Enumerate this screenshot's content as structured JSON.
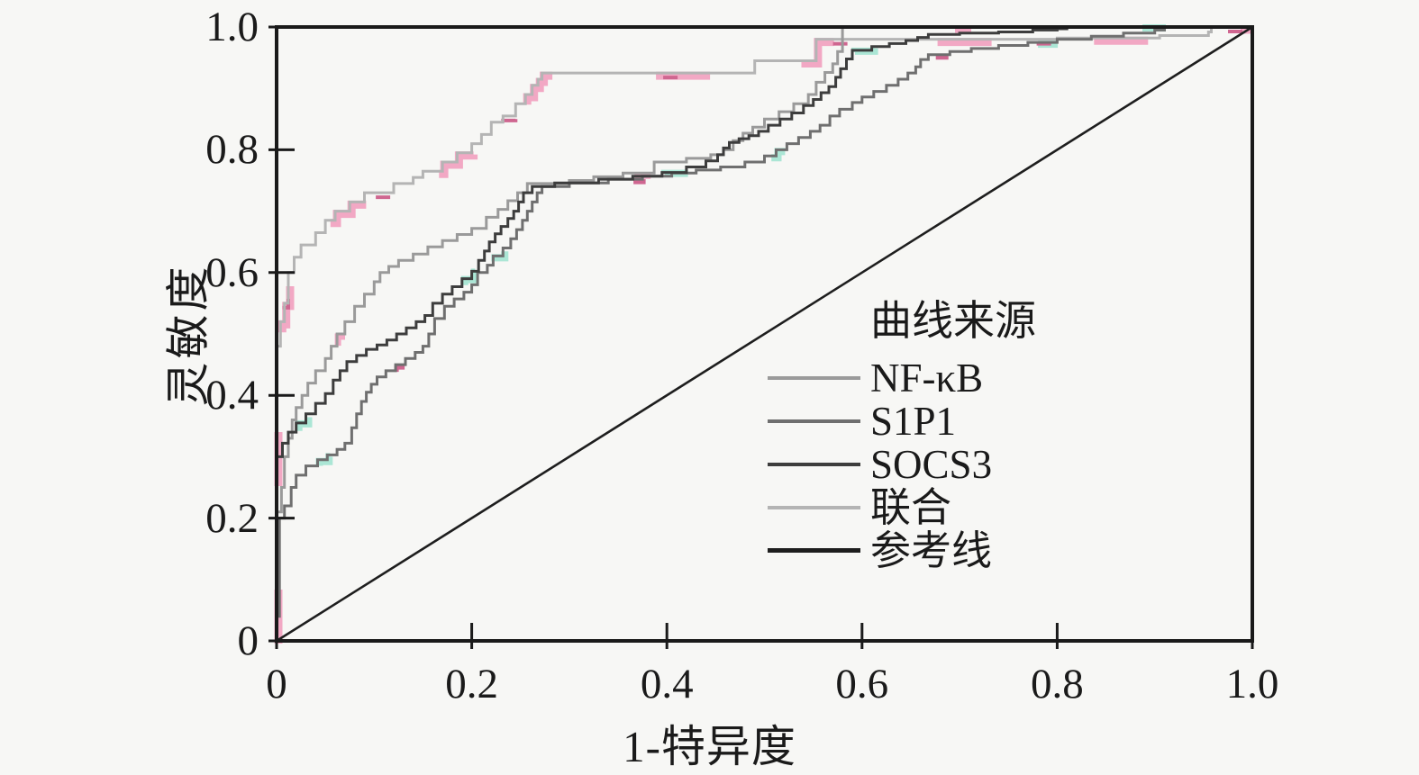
{
  "figure": {
    "background": "#f7f7f5",
    "text_color": "#1a1a1a",
    "frame_color": "#1a1a1a"
  },
  "chart_data": {
    "type": "line",
    "subtype": "roc-step-curves",
    "title": "",
    "xlabel": "1-特异度",
    "ylabel": "灵敏度",
    "xlim": [
      0,
      1
    ],
    "ylim": [
      0,
      1
    ],
    "grid": false,
    "x_tick_values": [
      0,
      0.2,
      0.4,
      0.6,
      0.8,
      1.0
    ],
    "y_tick_values": [
      0,
      0.2,
      0.4,
      0.6,
      0.8,
      1.0
    ],
    "x_tick_labels": [
      "0",
      "0.2",
      "0.4",
      "0.6",
      "0.8",
      "1.0"
    ],
    "y_tick_labels": [
      "0",
      "0.2",
      "0.4",
      "0.6",
      "0.8",
      "1.0"
    ],
    "legend": {
      "title": "曲线来源",
      "position": "inside-lower-right",
      "items": [
        {
          "label": "NF-κB",
          "color": "#9a9a9a"
        },
        {
          "label": "S1P1",
          "color": "#6f6f6f"
        },
        {
          "label": "SOCS3",
          "color": "#3d3d3d"
        },
        {
          "label": "联合",
          "color": "#b4b4b4"
        },
        {
          "label": "参考线",
          "color": "#1e1e1e"
        }
      ]
    },
    "accent_colors": {
      "pink": "#f2a8c4",
      "rose": "#cf6690",
      "teal": "#abe6d5"
    },
    "series": [
      {
        "name": "NF-κB",
        "color": "#9a9a9a",
        "step": true,
        "tint": "pink",
        "points": [
          [
            0,
            0
          ],
          [
            0,
            0.21
          ],
          [
            0.005,
            0.25
          ],
          [
            0.008,
            0.3
          ],
          [
            0.012,
            0.33
          ],
          [
            0.016,
            0.36
          ],
          [
            0.02,
            0.38
          ],
          [
            0.026,
            0.4
          ],
          [
            0.032,
            0.42
          ],
          [
            0.04,
            0.44
          ],
          [
            0.05,
            0.46
          ],
          [
            0.056,
            0.48
          ],
          [
            0.062,
            0.5
          ],
          [
            0.07,
            0.52
          ],
          [
            0.08,
            0.545
          ],
          [
            0.09,
            0.565
          ],
          [
            0.1,
            0.585
          ],
          [
            0.106,
            0.6
          ],
          [
            0.115,
            0.61
          ],
          [
            0.125,
            0.62
          ],
          [
            0.14,
            0.63
          ],
          [
            0.155,
            0.642
          ],
          [
            0.17,
            0.652
          ],
          [
            0.185,
            0.662
          ],
          [
            0.2,
            0.672
          ],
          [
            0.215,
            0.69
          ],
          [
            0.227,
            0.703
          ],
          [
            0.237,
            0.717
          ],
          [
            0.247,
            0.73
          ],
          [
            0.257,
            0.745
          ],
          [
            0.3,
            0.75
          ],
          [
            0.325,
            0.756
          ],
          [
            0.355,
            0.762
          ],
          [
            0.387,
            0.78
          ],
          [
            0.42,
            0.786
          ],
          [
            0.445,
            0.792
          ],
          [
            0.458,
            0.8
          ],
          [
            0.468,
            0.815
          ],
          [
            0.478,
            0.827
          ],
          [
            0.488,
            0.837
          ],
          [
            0.5,
            0.85
          ],
          [
            0.515,
            0.862
          ],
          [
            0.53,
            0.875
          ],
          [
            0.545,
            0.89
          ],
          [
            0.553,
            0.91
          ],
          [
            0.562,
            0.926
          ],
          [
            0.57,
            0.94
          ],
          [
            0.575,
            0.96
          ],
          [
            0.58,
            1.0
          ],
          [
            1,
            1
          ]
        ]
      },
      {
        "name": "S1P1",
        "color": "#6f6f6f",
        "step": true,
        "tint": "teal_pink",
        "points": [
          [
            0,
            0
          ],
          [
            0,
            0.04
          ],
          [
            0.003,
            0.2
          ],
          [
            0.008,
            0.22
          ],
          [
            0.015,
            0.25
          ],
          [
            0.02,
            0.27
          ],
          [
            0.03,
            0.285
          ],
          [
            0.042,
            0.295
          ],
          [
            0.052,
            0.303
          ],
          [
            0.062,
            0.312
          ],
          [
            0.07,
            0.322
          ],
          [
            0.077,
            0.347
          ],
          [
            0.082,
            0.37
          ],
          [
            0.087,
            0.39
          ],
          [
            0.092,
            0.405
          ],
          [
            0.097,
            0.418
          ],
          [
            0.103,
            0.43
          ],
          [
            0.112,
            0.44
          ],
          [
            0.122,
            0.45
          ],
          [
            0.132,
            0.46
          ],
          [
            0.142,
            0.47
          ],
          [
            0.15,
            0.48
          ],
          [
            0.156,
            0.5
          ],
          [
            0.162,
            0.525
          ],
          [
            0.172,
            0.545
          ],
          [
            0.182,
            0.557
          ],
          [
            0.192,
            0.568
          ],
          [
            0.2,
            0.58
          ],
          [
            0.206,
            0.6
          ],
          [
            0.216,
            0.612
          ],
          [
            0.222,
            0.627
          ],
          [
            0.232,
            0.64
          ],
          [
            0.24,
            0.655
          ],
          [
            0.246,
            0.67
          ],
          [
            0.252,
            0.685
          ],
          [
            0.257,
            0.7
          ],
          [
            0.262,
            0.715
          ],
          [
            0.267,
            0.73
          ],
          [
            0.272,
            0.74
          ],
          [
            0.3,
            0.746
          ],
          [
            0.34,
            0.752
          ],
          [
            0.375,
            0.757
          ],
          [
            0.405,
            0.762
          ],
          [
            0.43,
            0.767
          ],
          [
            0.455,
            0.772
          ],
          [
            0.48,
            0.78
          ],
          [
            0.5,
            0.79
          ],
          [
            0.512,
            0.8
          ],
          [
            0.523,
            0.81
          ],
          [
            0.535,
            0.82
          ],
          [
            0.547,
            0.83
          ],
          [
            0.557,
            0.84
          ],
          [
            0.567,
            0.855
          ],
          [
            0.577,
            0.866
          ],
          [
            0.59,
            0.877
          ],
          [
            0.6,
            0.886
          ],
          [
            0.612,
            0.895
          ],
          [
            0.625,
            0.905
          ],
          [
            0.637,
            0.915
          ],
          [
            0.647,
            0.925
          ],
          [
            0.655,
            0.935
          ],
          [
            0.66,
            0.947
          ],
          [
            0.668,
            0.955
          ],
          [
            0.69,
            0.96
          ],
          [
            0.712,
            0.965
          ],
          [
            0.74,
            0.97
          ],
          [
            0.77,
            0.975
          ],
          [
            0.8,
            0.98
          ],
          [
            0.835,
            0.985
          ],
          [
            0.868,
            0.99
          ],
          [
            0.9,
            0.995
          ],
          [
            0.91,
            1.0
          ],
          [
            1,
            1
          ]
        ]
      },
      {
        "name": "SOCS3",
        "color": "#3d3d3d",
        "step": true,
        "tint": "teal",
        "points": [
          [
            0,
            0
          ],
          [
            0,
            0.3
          ],
          [
            0.006,
            0.322
          ],
          [
            0.012,
            0.34
          ],
          [
            0.02,
            0.355
          ],
          [
            0.03,
            0.37
          ],
          [
            0.04,
            0.387
          ],
          [
            0.05,
            0.403
          ],
          [
            0.058,
            0.425
          ],
          [
            0.065,
            0.44
          ],
          [
            0.072,
            0.455
          ],
          [
            0.082,
            0.465
          ],
          [
            0.092,
            0.475
          ],
          [
            0.103,
            0.482
          ],
          [
            0.113,
            0.49
          ],
          [
            0.123,
            0.5
          ],
          [
            0.133,
            0.51
          ],
          [
            0.143,
            0.52
          ],
          [
            0.152,
            0.53
          ],
          [
            0.16,
            0.55
          ],
          [
            0.17,
            0.565
          ],
          [
            0.18,
            0.577
          ],
          [
            0.19,
            0.59
          ],
          [
            0.2,
            0.602
          ],
          [
            0.207,
            0.62
          ],
          [
            0.213,
            0.635
          ],
          [
            0.218,
            0.65
          ],
          [
            0.224,
            0.663
          ],
          [
            0.23,
            0.675
          ],
          [
            0.237,
            0.688
          ],
          [
            0.243,
            0.7
          ],
          [
            0.248,
            0.715
          ],
          [
            0.253,
            0.73
          ],
          [
            0.262,
            0.74
          ],
          [
            0.285,
            0.746
          ],
          [
            0.33,
            0.752
          ],
          [
            0.365,
            0.757
          ],
          [
            0.395,
            0.763
          ],
          [
            0.42,
            0.772
          ],
          [
            0.44,
            0.782
          ],
          [
            0.452,
            0.792
          ],
          [
            0.458,
            0.803
          ],
          [
            0.464,
            0.812
          ],
          [
            0.474,
            0.818
          ],
          [
            0.484,
            0.823
          ],
          [
            0.494,
            0.83
          ],
          [
            0.504,
            0.84
          ],
          [
            0.516,
            0.85
          ],
          [
            0.528,
            0.86
          ],
          [
            0.54,
            0.872
          ],
          [
            0.55,
            0.882
          ],
          [
            0.558,
            0.893
          ],
          [
            0.566,
            0.903
          ],
          [
            0.573,
            0.918
          ],
          [
            0.578,
            0.932
          ],
          [
            0.584,
            0.948
          ],
          [
            0.59,
            0.962
          ],
          [
            0.61,
            0.968
          ],
          [
            0.628,
            0.973
          ],
          [
            0.645,
            0.978
          ],
          [
            0.657,
            0.983
          ],
          [
            0.668,
            0.988
          ],
          [
            0.7,
            0.99
          ],
          [
            0.74,
            0.992
          ],
          [
            0.775,
            0.995
          ],
          [
            0.8,
            0.997
          ],
          [
            0.81,
            1.0
          ],
          [
            1,
            1
          ]
        ]
      },
      {
        "name": "联合",
        "color": "#b4b4b4",
        "step": true,
        "tint": "pink_dense",
        "points": [
          [
            0,
            0
          ],
          [
            0,
            0.48
          ],
          [
            0.004,
            0.52
          ],
          [
            0.008,
            0.55
          ],
          [
            0.012,
            0.6
          ],
          [
            0.018,
            0.625
          ],
          [
            0.025,
            0.645
          ],
          [
            0.04,
            0.665
          ],
          [
            0.05,
            0.685
          ],
          [
            0.06,
            0.7
          ],
          [
            0.075,
            0.715
          ],
          [
            0.09,
            0.73
          ],
          [
            0.12,
            0.745
          ],
          [
            0.14,
            0.755
          ],
          [
            0.15,
            0.765
          ],
          [
            0.17,
            0.78
          ],
          [
            0.185,
            0.795
          ],
          [
            0.2,
            0.81
          ],
          [
            0.21,
            0.825
          ],
          [
            0.22,
            0.845
          ],
          [
            0.232,
            0.855
          ],
          [
            0.245,
            0.875
          ],
          [
            0.255,
            0.89
          ],
          [
            0.262,
            0.905
          ],
          [
            0.268,
            0.915
          ],
          [
            0.272,
            0.925
          ],
          [
            0.49,
            0.945
          ],
          [
            0.553,
            0.98
          ],
          [
            0.8,
            0.982
          ],
          [
            0.905,
            0.986
          ],
          [
            0.955,
            0.992
          ],
          [
            0.958,
            1.0
          ],
          [
            1,
            1
          ]
        ]
      },
      {
        "name": "参考线",
        "color": "#1e1e1e",
        "step": false,
        "tint": null,
        "points": [
          [
            0,
            0
          ],
          [
            1,
            1
          ]
        ]
      }
    ]
  }
}
